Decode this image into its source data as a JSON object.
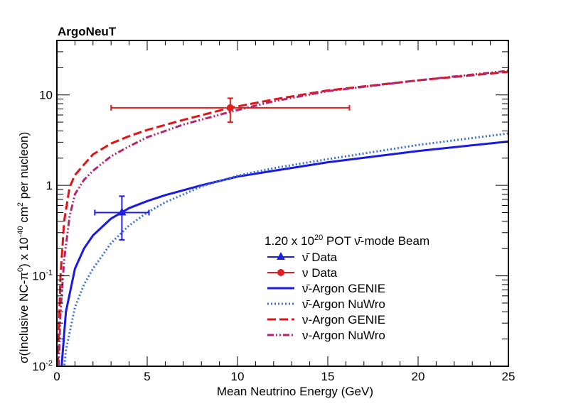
{
  "experiment_label": "ArgoNeuT",
  "chart_data": {
    "type": "line",
    "title": "",
    "xlabel": "Mean Neutrino Energy (GeV)",
    "ylabel_parts": {
      "base": "σ(Inclusive NC-π",
      "pi_sup": "0",
      "mid": ") x 10",
      "exp": "-40",
      "unit": " cm",
      "unit_sup": "2",
      "tail": " per nucleon)"
    },
    "x_range": [
      0,
      25
    ],
    "y_range": [
      0.01,
      40
    ],
    "y_scale": "log",
    "x_ticks": [
      "0",
      "5",
      "10",
      "15",
      "20",
      "25"
    ],
    "y_tick_labels": [
      {
        "value": 0.01,
        "base": "10",
        "exp": "-2"
      },
      {
        "value": 0.1,
        "base": "10",
        "exp": "-1"
      },
      {
        "value": 1,
        "base": "1",
        "exp": ""
      },
      {
        "value": 10,
        "base": "10",
        "exp": ""
      }
    ],
    "legend": {
      "position": "bottom-right",
      "header": {
        "pre": "1.20 x 10",
        "exp": "20",
        "post": " POT ν̄-mode Beam"
      },
      "entries": [
        "ν̄ Data",
        "ν Data",
        "ν̄-Argon GENIE",
        "ν̄-Argon NuWro",
        "ν-Argon GENIE",
        "ν-Argon NuWro"
      ]
    },
    "data_points": [
      {
        "name": "ν̄ Data",
        "color": "#1f1fe0",
        "marker": "triangle",
        "x": 3.6,
        "y": 0.5,
        "x_err": [
          2.1,
          5.1
        ],
        "y_err": [
          0.25,
          0.76
        ]
      },
      {
        "name": "ν Data",
        "color": "#e01f1f",
        "marker": "circle",
        "x": 9.6,
        "y": 7.2,
        "x_err": [
          3.0,
          16.2
        ],
        "y_err": [
          5.0,
          9.2
        ]
      }
    ],
    "series": [
      {
        "name": "ν̄-Argon GENIE",
        "color": "#1a1ae6",
        "style": "solid",
        "x": [
          0.2,
          0.5,
          1.0,
          1.5,
          2.0,
          3.0,
          4.0,
          5.0,
          6.0,
          8.0,
          10.0,
          12.0,
          15.0,
          20.0,
          25.0
        ],
        "y": [
          0.007,
          0.04,
          0.12,
          0.2,
          0.28,
          0.43,
          0.56,
          0.67,
          0.78,
          1.0,
          1.25,
          1.45,
          1.8,
          2.4,
          3.05
        ]
      },
      {
        "name": "ν̄-Argon NuWro",
        "color": "#3a6fd8",
        "style": "dotted",
        "x": [
          0.3,
          0.5,
          1.0,
          1.5,
          2.0,
          3.0,
          4.0,
          5.0,
          6.0,
          8.0,
          10.0,
          12.0,
          15.0,
          20.0,
          25.0
        ],
        "y": [
          0.006,
          0.015,
          0.045,
          0.08,
          0.12,
          0.23,
          0.36,
          0.5,
          0.65,
          0.97,
          1.28,
          1.55,
          1.95,
          2.8,
          3.75
        ]
      },
      {
        "name": "ν-Argon GENIE",
        "color": "#e01414",
        "style": "dashed",
        "x": [
          0.05,
          0.2,
          0.4,
          0.7,
          1.0,
          1.5,
          2.0,
          3.0,
          4.0,
          5.0,
          7.0,
          9.6,
          12.0,
          15.0,
          20.0,
          25.0
        ],
        "y": [
          0.01,
          0.1,
          0.4,
          0.95,
          1.3,
          1.7,
          2.2,
          2.9,
          3.5,
          4.1,
          5.3,
          7.2,
          8.9,
          11.2,
          14.5,
          18.0
        ]
      },
      {
        "name": "ν-Argon NuWro",
        "color": "#b5256e",
        "style": "dashdotdot",
        "x": [
          0.1,
          0.2,
          0.4,
          0.7,
          1.0,
          1.5,
          2.0,
          3.0,
          4.0,
          5.0,
          7.0,
          9.6,
          12.0,
          15.0,
          20.0,
          25.0
        ],
        "y": [
          0.01,
          0.04,
          0.15,
          0.45,
          0.8,
          1.15,
          1.45,
          2.1,
          2.7,
          3.4,
          4.7,
          6.5,
          8.5,
          11.0,
          14.5,
          18.5
        ]
      }
    ]
  }
}
